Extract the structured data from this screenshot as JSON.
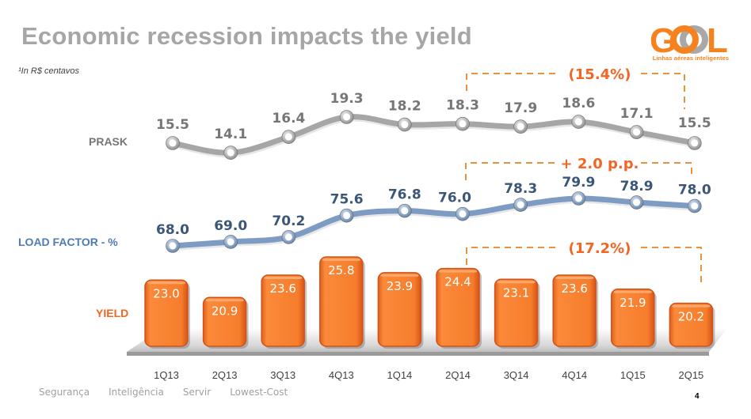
{
  "slide": {
    "title": "Economic recession impacts the yield",
    "footnote": "¹In R$ centavos",
    "page_number": "4"
  },
  "logo": {
    "letters_left": "G",
    "letters_mid": "O",
    "letters_right": "L",
    "tagline": "Linhas aéreas inteligentes",
    "brand_color": "#f5821f",
    "secondary_color": "#a8a8a8"
  },
  "footer": {
    "items": [
      "Segurança",
      "Inteligência",
      "Servir",
      "Lowest-Cost"
    ]
  },
  "labels": {
    "prask": "PRASK",
    "load_factor": "LOAD FACTOR - %",
    "yield": "YIELD"
  },
  "colors": {
    "prask_line": "#a6a6a6",
    "prask_text": "#767676",
    "load_factor_line": "#7e9cc3",
    "load_factor_text": "#3b5677",
    "load_factor_label": "#4f7bb2",
    "yield_bar": "#f57d2c",
    "yield_label": "#f26522",
    "annotation": "#f26522",
    "annotation_dash": "#e8913e"
  },
  "chart_data": {
    "type": "bar",
    "title": "Economic recession impacts the yield",
    "categories": [
      "1Q13",
      "2Q13",
      "3Q13",
      "4Q13",
      "1Q14",
      "2Q14",
      "3Q14",
      "4Q14",
      "1Q15",
      "2Q15"
    ],
    "series": [
      {
        "name": "PRASK",
        "kind": "line",
        "values": [
          15.5,
          14.1,
          16.4,
          19.3,
          18.2,
          18.3,
          17.9,
          18.6,
          17.1,
          15.5
        ]
      },
      {
        "name": "LOAD FACTOR - %",
        "kind": "line",
        "values": [
          68.0,
          69.0,
          70.2,
          75.6,
          76.8,
          76.0,
          78.3,
          79.9,
          78.9,
          78.0
        ]
      },
      {
        "name": "YIELD",
        "kind": "bar",
        "values": [
          23.0,
          20.9,
          23.6,
          25.8,
          23.9,
          24.4,
          23.1,
          23.6,
          21.9,
          20.2
        ]
      }
    ],
    "annotations": [
      {
        "series": "PRASK",
        "from": "2Q14",
        "to": "2Q15",
        "text": "(15.4%)"
      },
      {
        "series": "LOAD FACTOR - %",
        "from": "2Q14",
        "to": "2Q15",
        "text": "+ 2.0 p.p."
      },
      {
        "series": "YIELD",
        "from": "2Q14",
        "to": "2Q15",
        "text": "(17.2%)"
      }
    ],
    "xlabel": "",
    "ylabel": "",
    "grid": false,
    "legend": "none",
    "note": "¹In R$ centavos"
  }
}
